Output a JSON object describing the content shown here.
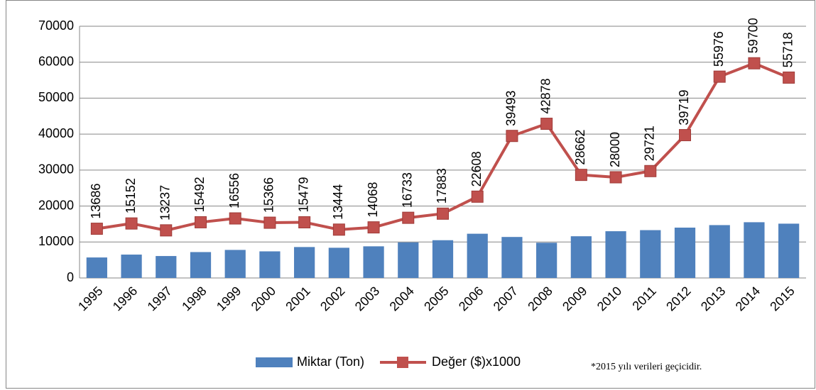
{
  "chart_data": {
    "type": "bar",
    "categories": [
      "1995",
      "1996",
      "1997",
      "1998",
      "1999",
      "2000",
      "2001",
      "2002",
      "2003",
      "2004",
      "2005",
      "2006",
      "2007",
      "2008",
      "2009",
      "2010",
      "2011",
      "2012",
      "2013",
      "2014",
      "2015"
    ],
    "series": [
      {
        "name": "Miktar (Ton)",
        "type": "bar",
        "color": "#4f81bd",
        "values": [
          5700,
          6500,
          6100,
          7200,
          7800,
          7400,
          8600,
          8400,
          8800,
          9900,
          10500,
          12300,
          11400,
          9800,
          11600,
          13000,
          13300,
          14000,
          14700,
          15500,
          15100
        ]
      },
      {
        "name": "Değer ($)x1000",
        "type": "line",
        "color": "#c0504d",
        "values": [
          13686,
          15152,
          13237,
          15492,
          16556,
          15366,
          15479,
          13444,
          14068,
          16733,
          17883,
          22608,
          39493,
          42878,
          28662,
          28000,
          29721,
          39719,
          55976,
          59700,
          55718
        ],
        "data_labels": true
      }
    ],
    "ylim": [
      0,
      70000
    ],
    "yticks": [
      0,
      10000,
      20000,
      30000,
      40000,
      50000,
      60000,
      70000
    ],
    "grid": true,
    "legend": "bottom",
    "annotation": "*2015 yılı verileri geçicidir."
  }
}
